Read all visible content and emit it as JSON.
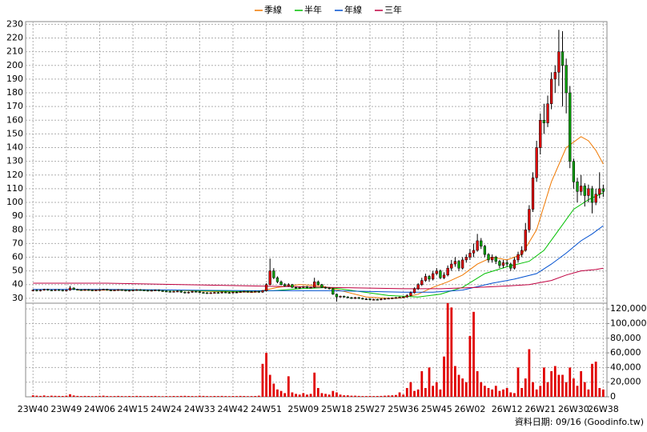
{
  "chart_data": {
    "type": "candlestick",
    "legend": "top",
    "grid": true,
    "up_color": "#e00000",
    "down_color": "#00a000",
    "volume_color": "#e00000",
    "footer": "資料日期: 09/16 (Goodinfo.tw)",
    "xlim": [
      -2,
      155
    ],
    "xticks": [
      {
        "value": 0,
        "label": "23W40"
      },
      {
        "value": 9,
        "label": "23W49"
      },
      {
        "value": 18,
        "label": "24W06"
      },
      {
        "value": 27,
        "label": "24W15"
      },
      {
        "value": 36,
        "label": "24W24"
      },
      {
        "value": 45,
        "label": "24W33"
      },
      {
        "value": 54,
        "label": "24W42"
      },
      {
        "value": 63,
        "label": "24W51"
      },
      {
        "value": 73,
        "label": "25W09"
      },
      {
        "value": 82,
        "label": "25W18"
      },
      {
        "value": 91,
        "label": "25W27"
      },
      {
        "value": 100,
        "label": "25W36"
      },
      {
        "value": 109,
        "label": "25W45"
      },
      {
        "value": 118,
        "label": "26W02"
      },
      {
        "value": 128,
        "label": "26W12"
      },
      {
        "value": 137,
        "label": "26W21"
      },
      {
        "value": 146,
        "label": "26W30"
      },
      {
        "value": 154,
        "label": "26W38"
      }
    ],
    "ylim": [
      27,
      232
    ],
    "yticks": [
      30,
      40,
      50,
      60,
      70,
      80,
      90,
      100,
      110,
      120,
      130,
      140,
      150,
      160,
      170,
      180,
      190,
      200,
      210,
      220,
      230
    ],
    "volume_ylim": [
      0,
      130000
    ],
    "volume_ticks": [
      0,
      {
        "value": 20000,
        "label": "20,000"
      },
      {
        "value": 40000,
        "label": "40,000"
      },
      {
        "value": 60000,
        "label": "60,000"
      },
      {
        "value": 80000,
        "label": "80,000"
      },
      {
        "value": 100000,
        "label": "100,000"
      },
      {
        "value": 120000,
        "label": "120,000"
      }
    ],
    "candles": [
      [
        35.8,
        36.5,
        35.3,
        36
      ],
      [
        36,
        36.5,
        35,
        35.5
      ],
      [
        35.5,
        36.5,
        35,
        36
      ],
      [
        36,
        37,
        35.5,
        36.5
      ],
      [
        36.5,
        37,
        35.5,
        36
      ],
      [
        36,
        36.5,
        35.3,
        35.8
      ],
      [
        35.8,
        36.7,
        35.3,
        36.2
      ],
      [
        36.2,
        36.7,
        35.5,
        36
      ],
      [
        36,
        36.5,
        35,
        35.5
      ],
      [
        35.5,
        36.5,
        35,
        36
      ],
      [
        36,
        39,
        35.5,
        37.5
      ],
      [
        37.5,
        38,
        36,
        36.5
      ],
      [
        36.5,
        37,
        35.7,
        36.2
      ],
      [
        36.2,
        36.7,
        35.5,
        36
      ],
      [
        36,
        36.8,
        35.5,
        36.3
      ],
      [
        36.3,
        36.8,
        35.5,
        36
      ],
      [
        36,
        36.5,
        35.3,
        35.8
      ],
      [
        35.8,
        36.5,
        35.3,
        36
      ],
      [
        36,
        36.7,
        35.5,
        36.2
      ],
      [
        36.2,
        37,
        35.7,
        36.5
      ],
      [
        36.5,
        37,
        35.5,
        36
      ],
      [
        36,
        36.5,
        35.3,
        35.8
      ],
      [
        35.8,
        36.5,
        35.3,
        36
      ],
      [
        36,
        36.7,
        35.5,
        36.2
      ],
      [
        36.2,
        36.7,
        35.5,
        36
      ],
      [
        36,
        36.5,
        35,
        35.5
      ],
      [
        35.5,
        36.3,
        35,
        35.8
      ],
      [
        35.8,
        36.5,
        35.3,
        36
      ],
      [
        36,
        36.7,
        35.5,
        36.2
      ],
      [
        36.2,
        36.7,
        35.5,
        36
      ],
      [
        36,
        36.5,
        35.3,
        35.8
      ],
      [
        35.8,
        36.3,
        35,
        35.5
      ],
      [
        35.5,
        36.3,
        35,
        35.8
      ],
      [
        35.8,
        36.5,
        35.3,
        36
      ],
      [
        36,
        36.5,
        35,
        35.5
      ],
      [
        35.5,
        36,
        34.7,
        35.2
      ],
      [
        35.2,
        35.7,
        34.5,
        35
      ],
      [
        35,
        35.5,
        34.3,
        34.8
      ],
      [
        34.8,
        35.5,
        34.3,
        35
      ],
      [
        35,
        35.7,
        34.5,
        35.2
      ],
      [
        35.2,
        35.7,
        34,
        34.5
      ],
      [
        34.5,
        35,
        33.5,
        34
      ],
      [
        34,
        35,
        33.5,
        34.5
      ],
      [
        34.5,
        35.5,
        34,
        35
      ],
      [
        35,
        35.5,
        34.3,
        34.8
      ],
      [
        34.8,
        35.3,
        33.7,
        34.2
      ],
      [
        34.2,
        34.7,
        33.5,
        34
      ],
      [
        34,
        34.5,
        33.3,
        33.8
      ],
      [
        33.8,
        34.5,
        33.3,
        34
      ],
      [
        34,
        34.7,
        33.5,
        34.2
      ],
      [
        34.2,
        34.7,
        33.5,
        34
      ],
      [
        34,
        35,
        33.5,
        34.5
      ],
      [
        34.5,
        35,
        33.7,
        34.2
      ],
      [
        34.2,
        34.7,
        33.5,
        34
      ],
      [
        34,
        35,
        33.5,
        34.5
      ],
      [
        34.5,
        35,
        34,
        34.5
      ],
      [
        34.5,
        35.3,
        34,
        34.8
      ],
      [
        34.8,
        35.5,
        34.3,
        35
      ],
      [
        35,
        35.5,
        34.1,
        34.6
      ],
      [
        34.6,
        35.3,
        34.1,
        34.8
      ],
      [
        34.8,
        35.5,
        34.3,
        35
      ],
      [
        35,
        35.5,
        34,
        34.5
      ],
      [
        34.5,
        36,
        34,
        35.5
      ],
      [
        35.5,
        41,
        35,
        40
      ],
      [
        40,
        59,
        39.5,
        50
      ],
      [
        50,
        52,
        44,
        45
      ],
      [
        45,
        46,
        41,
        42
      ],
      [
        42,
        43,
        39.5,
        40
      ],
      [
        40,
        41,
        38.5,
        39
      ],
      [
        39,
        41,
        38.5,
        40
      ],
      [
        40,
        40.5,
        37.5,
        38
      ],
      [
        38,
        38.5,
        37,
        37.5
      ],
      [
        37.5,
        38.5,
        37,
        38
      ],
      [
        38,
        39,
        37.5,
        38.5
      ],
      [
        38.5,
        39,
        37.3,
        37.8
      ],
      [
        37.8,
        38.5,
        37.3,
        38
      ],
      [
        38,
        45,
        37.5,
        42
      ],
      [
        42,
        43,
        39.5,
        40
      ],
      [
        40,
        40.5,
        37.5,
        38
      ],
      [
        38,
        38.5,
        37,
        37.5
      ],
      [
        37.5,
        38,
        36.5,
        37
      ],
      [
        37,
        37.5,
        32.5,
        33
      ],
      [
        33,
        33.5,
        27.5,
        31
      ],
      [
        31,
        32,
        30.5,
        31.5
      ],
      [
        31.5,
        32,
        30.5,
        31
      ],
      [
        31,
        31.5,
        30,
        30.5
      ],
      [
        30.5,
        31,
        29.5,
        30
      ],
      [
        30,
        31,
        29.5,
        30.5
      ],
      [
        30.5,
        31,
        29.5,
        30
      ],
      [
        30,
        30.5,
        29,
        29.5
      ],
      [
        29.5,
        30,
        29,
        29.5
      ],
      [
        29.5,
        30,
        28.5,
        29
      ],
      [
        29,
        29.7,
        28.5,
        29.2
      ],
      [
        29.2,
        29.7,
        28.5,
        29
      ],
      [
        29,
        30,
        28.5,
        29.5
      ],
      [
        29.5,
        30.3,
        29,
        29.8
      ],
      [
        29.8,
        30.5,
        29.3,
        30
      ],
      [
        30,
        30.7,
        29.5,
        30.2
      ],
      [
        30.2,
        31,
        29.7,
        30.5
      ],
      [
        30.5,
        31.3,
        30,
        30.8
      ],
      [
        30.8,
        31.5,
        30.3,
        31
      ],
      [
        31,
        33,
        30.5,
        32
      ],
      [
        32,
        35,
        31.5,
        34
      ],
      [
        34,
        38,
        33.5,
        37
      ],
      [
        37,
        41,
        36,
        40
      ],
      [
        40,
        45,
        39,
        43
      ],
      [
        43,
        48,
        42,
        46
      ],
      [
        46,
        47,
        42,
        44
      ],
      [
        44,
        50,
        43,
        48
      ],
      [
        48,
        52,
        47,
        50
      ],
      [
        50,
        51,
        44,
        45
      ],
      [
        45,
        49,
        44,
        47
      ],
      [
        47,
        54,
        46,
        52
      ],
      [
        52,
        58,
        50,
        55
      ],
      [
        55,
        60,
        53,
        57
      ],
      [
        57,
        58,
        50,
        52
      ],
      [
        52,
        60,
        51,
        58
      ],
      [
        58,
        62,
        56,
        60
      ],
      [
        60,
        66,
        58,
        63
      ],
      [
        63,
        70,
        60,
        65
      ],
      [
        65,
        77,
        64,
        72
      ],
      [
        72,
        74,
        66,
        68
      ],
      [
        68,
        69,
        60,
        62
      ],
      [
        62,
        63,
        56,
        58
      ],
      [
        58,
        62,
        56,
        60
      ],
      [
        60,
        61,
        55,
        57
      ],
      [
        57,
        58,
        52,
        54
      ],
      [
        54,
        58,
        52,
        56
      ],
      [
        56,
        58,
        53,
        55
      ],
      [
        55,
        56,
        50,
        52
      ],
      [
        52,
        60,
        51,
        58
      ],
      [
        58,
        64,
        56,
        62
      ],
      [
        62,
        68,
        60,
        65
      ],
      [
        65,
        85,
        64,
        80
      ],
      [
        80,
        98,
        78,
        95
      ],
      [
        95,
        122,
        93,
        118
      ],
      [
        118,
        145,
        115,
        140
      ],
      [
        140,
        165,
        135,
        160
      ],
      [
        160,
        172,
        150,
        158
      ],
      [
        158,
        178,
        155,
        172
      ],
      [
        172,
        195,
        168,
        190
      ],
      [
        190,
        200,
        180,
        195
      ],
      [
        195,
        226,
        185,
        210
      ],
      [
        210,
        225,
        170,
        200
      ],
      [
        200,
        205,
        165,
        180
      ],
      [
        180,
        185,
        125,
        130
      ],
      [
        130,
        132,
        110,
        115
      ],
      [
        115,
        118,
        100,
        108
      ],
      [
        108,
        120,
        105,
        112
      ],
      [
        112,
        114,
        97,
        105
      ],
      [
        105,
        113,
        100,
        110
      ],
      [
        110,
        112,
        92,
        100
      ],
      [
        100,
        110,
        98,
        106
      ],
      [
        106,
        122,
        103,
        110
      ],
      [
        110,
        113,
        104,
        108
      ]
    ],
    "volume": [
      2000,
      1500,
      1200,
      1800,
      1000,
      1500,
      1300,
      1200,
      1100,
      1500,
      3500,
      1800,
      1200,
      1000,
      1200,
      1100,
      900,
      1000,
      1300,
      1500,
      1100,
      900,
      1000,
      1200,
      1000,
      900,
      1100,
      1000,
      1200,
      1100,
      900,
      1000,
      1100,
      1200,
      900,
      800,
      1000,
      900,
      1100,
      1000,
      1200,
      1300,
      1100,
      1000,
      900,
      1500,
      1200,
      1000,
      900,
      1100,
      1000,
      1200,
      1000,
      900,
      1100,
      1000,
      1200,
      1100,
      900,
      1000,
      1100,
      1500,
      45000,
      60000,
      30000,
      18000,
      10000,
      8000,
      5000,
      28000,
      6000,
      4000,
      3000,
      5000,
      3000,
      4000,
      33000,
      12000,
      5000,
      4000,
      3000,
      8000,
      6000,
      3000,
      2000,
      2000,
      1500,
      1500,
      1200,
      1000,
      1000,
      1200,
      1000,
      1100,
      1200,
      1500,
      1800,
      2000,
      2500,
      6000,
      3000,
      12000,
      20000,
      8000,
      10000,
      35000,
      12000,
      40000,
      15000,
      20000,
      10000,
      55000,
      128000,
      122000,
      42000,
      30000,
      25000,
      20000,
      83000,
      116000,
      35000,
      20000,
      15000,
      12000,
      10000,
      15000,
      8000,
      10000,
      12000,
      6000,
      5000,
      40000,
      12000,
      25000,
      65000,
      20000,
      10000,
      15000,
      40000,
      20000,
      35000,
      42000,
      30000,
      30000,
      20000,
      40000,
      25000,
      15000,
      35000,
      20000,
      10000,
      45000,
      48000,
      12000,
      10000
    ],
    "series": [
      {
        "name": "季線",
        "color": "#f07800",
        "x": [
          12,
          24,
          36,
          48,
          60,
          66,
          72,
          78,
          84,
          90,
          96,
          100,
          104,
          108,
          112,
          116,
          120,
          124,
          128,
          132,
          136,
          140,
          144,
          148,
          150,
          152,
          154
        ],
        "values": [
          36,
          36,
          36,
          35,
          34.5,
          38,
          40,
          39,
          35,
          31,
          30,
          30.5,
          33,
          38,
          42,
          47,
          55,
          60,
          58,
          62,
          80,
          115,
          140,
          148,
          145,
          138,
          128
        ]
      },
      {
        "name": "半年",
        "color": "#00c000",
        "x": [
          25,
          40,
          55,
          65,
          72,
          80,
          88,
          96,
          104,
          110,
          116,
          122,
          128,
          134,
          138,
          142,
          146,
          150,
          154
        ],
        "values": [
          36,
          35.8,
          35,
          35.5,
          37,
          38,
          35,
          32,
          31,
          33,
          38,
          48,
          53,
          57,
          65,
          80,
          95,
          102,
          107
        ]
      },
      {
        "name": "年線",
        "color": "#0050d0",
        "x": [
          0,
          20,
          40,
          60,
          80,
          90,
          100,
          108,
          116,
          124,
          130,
          136,
          140,
          144,
          148,
          151,
          154
        ],
        "values": [
          36.5,
          36.5,
          36,
          35.5,
          35.5,
          35,
          34.5,
          34.5,
          36,
          41,
          44,
          48,
          55,
          63,
          72,
          77,
          83
        ]
      },
      {
        "name": "三年",
        "color": "#c00040",
        "x": [
          0,
          20,
          40,
          60,
          80,
          100,
          110,
          120,
          128,
          134,
          140,
          144,
          148,
          152,
          154
        ],
        "values": [
          41,
          41,
          40,
          39,
          38,
          37,
          37,
          38,
          39,
          40,
          43,
          47,
          50,
          51,
          52
        ]
      }
    ]
  }
}
